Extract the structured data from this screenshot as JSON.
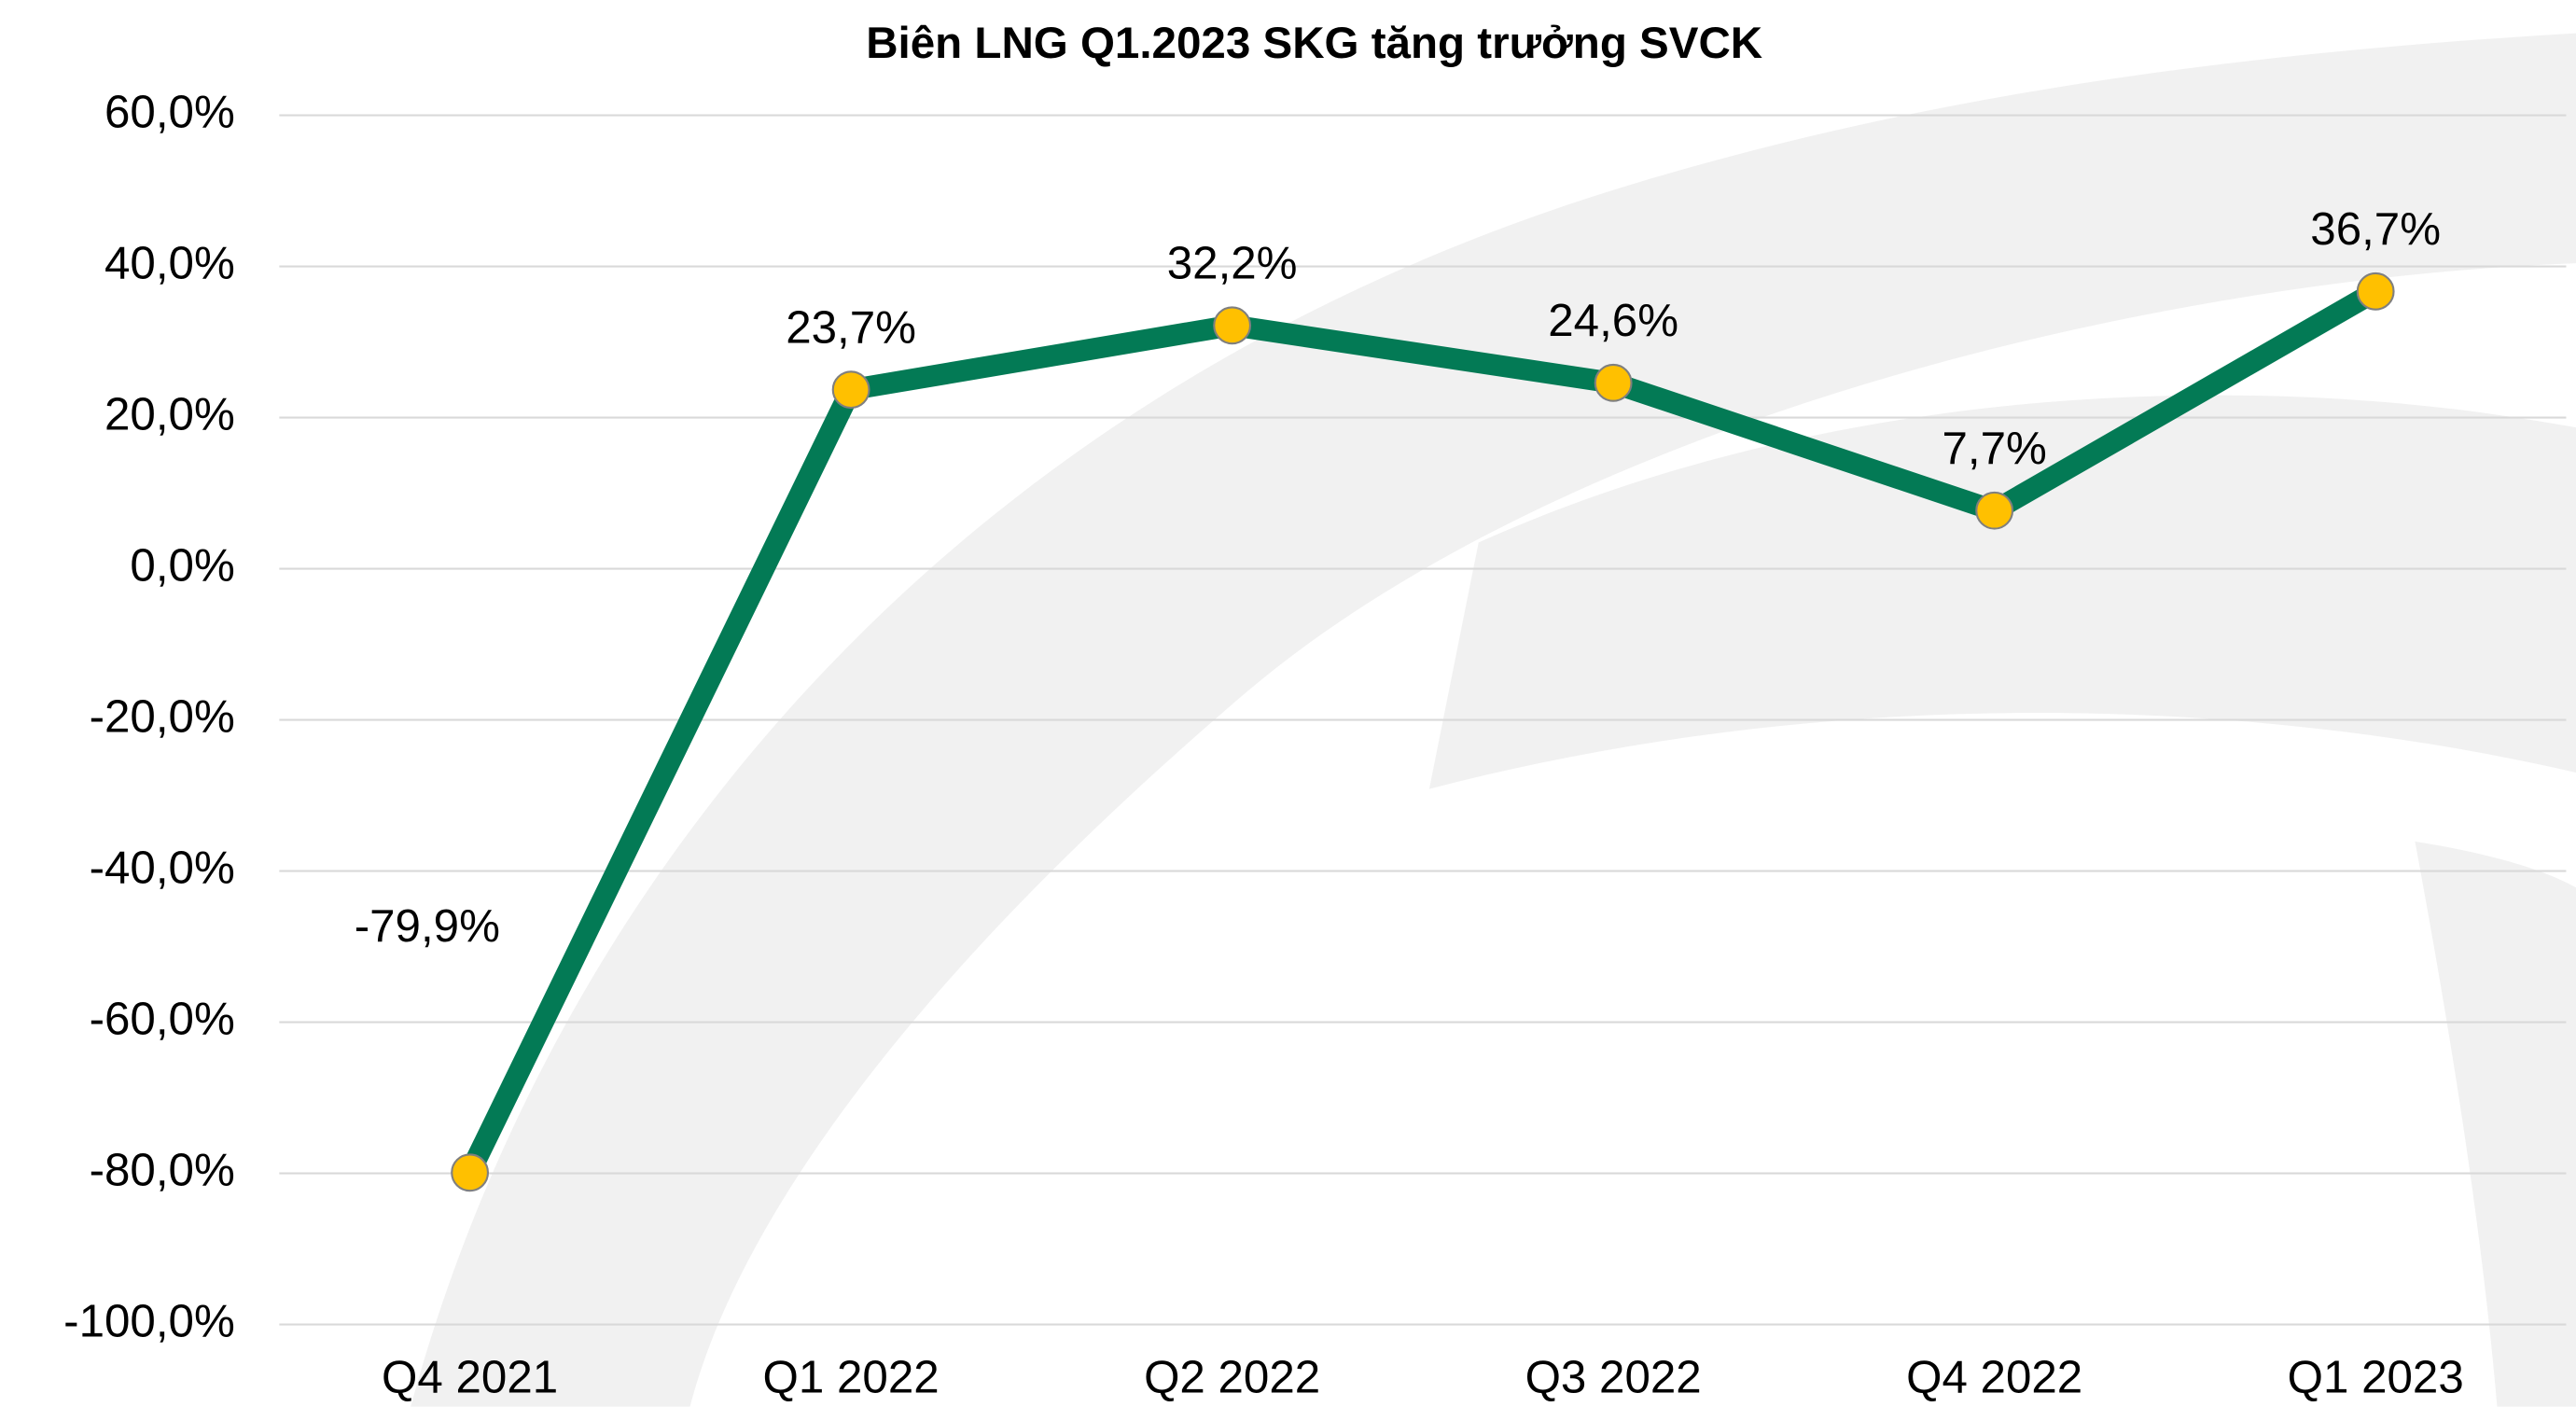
{
  "chart_data": {
    "type": "line",
    "title": "Biên LNG Q1.2023 SKG tăng trưởng SVCK",
    "categories": [
      "Q4 2021",
      "Q1 2022",
      "Q2 2022",
      "Q3 2022",
      "Q4 2022",
      "Q1 2023"
    ],
    "values": [
      -79.9,
      23.7,
      32.2,
      24.6,
      7.7,
      36.7
    ],
    "value_labels": [
      "-79,9%",
      "23,7%",
      "32,2%",
      "24,6%",
      "7,7%",
      "36,7%"
    ],
    "color": "#037a55",
    "marker_color": "#ffc000",
    "ylim": [
      -100,
      60
    ],
    "yticks": [
      {
        "value": -100,
        "label": "-100,0%"
      },
      {
        "value": -80,
        "label": "-80,0%"
      },
      {
        "value": -60,
        "label": "-60,0%"
      },
      {
        "value": -40,
        "label": "-40,0%"
      },
      {
        "value": -20,
        "label": "-20,0%"
      },
      {
        "value": 0,
        "label": "0,0%"
      },
      {
        "value": 20,
        "label": "20,0%"
      },
      {
        "value": 40,
        "label": "40,0%"
      },
      {
        "value": 60,
        "label": "60,0%"
      }
    ],
    "grid": true
  }
}
